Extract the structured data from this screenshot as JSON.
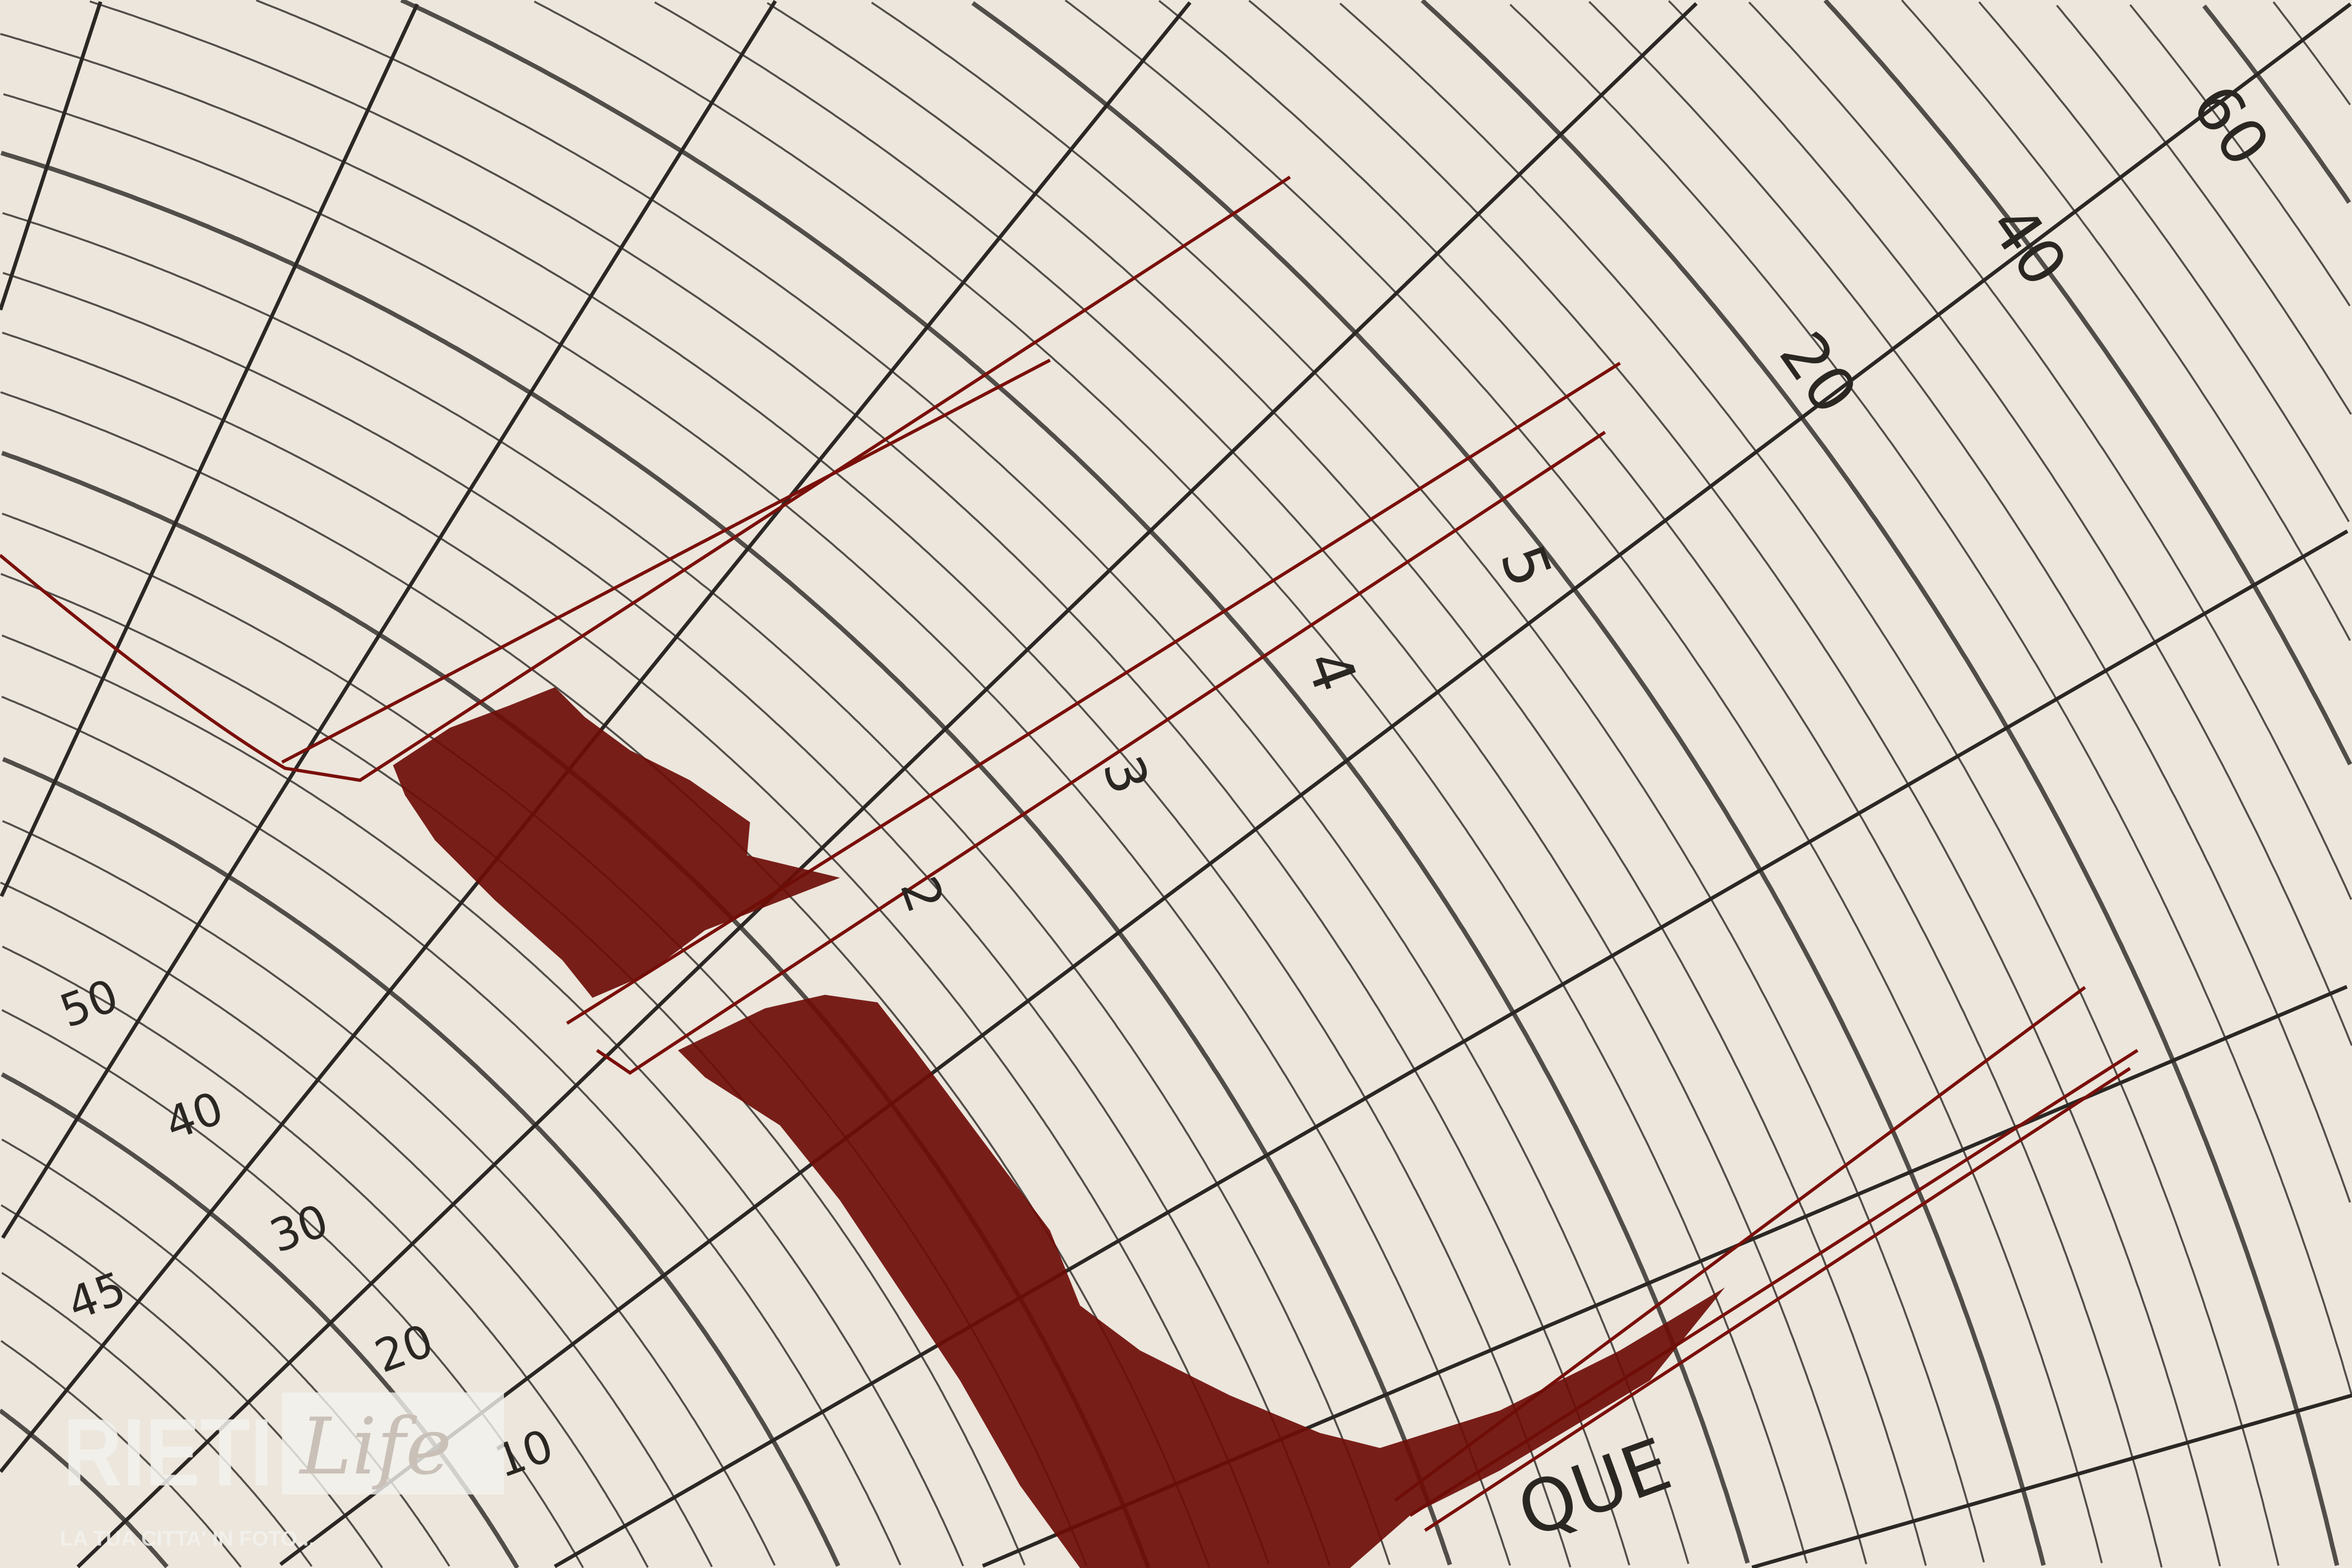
{
  "photo": {
    "subject": "seismograph-chart",
    "paper_color": "#ece6dc",
    "grid_color": "#2b2724",
    "trace_color": "#7a0f0a"
  },
  "scale_labels": {
    "upper_right": [
      "20",
      "40",
      "60"
    ],
    "middle": [
      "5",
      "4",
      "3",
      "2"
    ],
    "lower_left": [
      "50",
      "40",
      "30",
      "20",
      "10",
      "45"
    ],
    "bottom_text": "QUE"
  },
  "watermark": {
    "logo_word": "RIETI",
    "logo_script": "Life",
    "tagline": "LA TUA CITTA' IN FOTO..."
  }
}
